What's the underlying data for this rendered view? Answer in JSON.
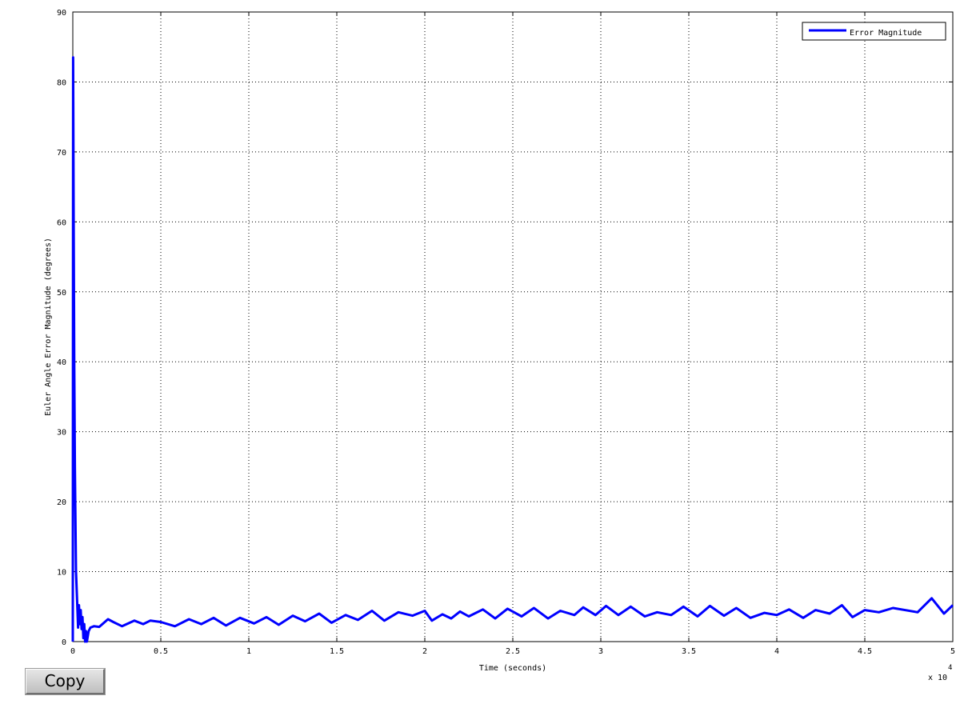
{
  "copy_button": {
    "label": "Copy"
  },
  "chart_data": {
    "type": "line",
    "title": "",
    "xlabel": "Time (seconds)",
    "ylabel": "Euler Angle Error Magnitude (degrees)",
    "x_exponent_label": {
      "base": "x 10",
      "power": "4"
    },
    "xlim": [
      0,
      5
    ],
    "ylim": [
      0,
      90
    ],
    "x_ticks": [
      0,
      0.5,
      1,
      1.5,
      2,
      2.5,
      3,
      3.5,
      4,
      4.5,
      5
    ],
    "x_tick_labels": [
      "0",
      "0.5",
      "1",
      "1.5",
      "2",
      "2.5",
      "3",
      "3.5",
      "4",
      "4.5",
      "5"
    ],
    "y_ticks": [
      0,
      10,
      20,
      30,
      40,
      50,
      60,
      70,
      80,
      90
    ],
    "y_tick_labels": [
      "0",
      "10",
      "20",
      "30",
      "40",
      "50",
      "60",
      "70",
      "80",
      "90"
    ],
    "grid": true,
    "legend_position": "top-right",
    "series": [
      {
        "name": "Error Magnitude",
        "color": "#0000ff",
        "x": [
          0,
          0.002,
          0.005,
          0.008,
          0.012,
          0.018,
          0.025,
          0.03,
          0.035,
          0.04,
          0.045,
          0.05,
          0.055,
          0.06,
          0.065,
          0.07,
          0.075,
          0.08,
          0.09,
          0.1,
          0.12,
          0.15,
          0.2,
          0.23,
          0.28,
          0.35,
          0.4,
          0.44,
          0.5,
          0.58,
          0.66,
          0.73,
          0.8,
          0.87,
          0.95,
          1.03,
          1.1,
          1.17,
          1.25,
          1.32,
          1.4,
          1.47,
          1.55,
          1.62,
          1.7,
          1.77,
          1.85,
          1.93,
          2.0,
          2.04,
          2.1,
          2.15,
          2.2,
          2.25,
          2.33,
          2.4,
          2.47,
          2.55,
          2.62,
          2.7,
          2.77,
          2.85,
          2.9,
          2.97,
          3.03,
          3.1,
          3.17,
          3.25,
          3.32,
          3.4,
          3.47,
          3.55,
          3.62,
          3.7,
          3.77,
          3.85,
          3.93,
          4.0,
          4.07,
          4.15,
          4.22,
          4.3,
          4.37,
          4.43,
          4.5,
          4.58,
          4.66,
          4.8,
          4.88,
          4.95,
          5.0
        ],
        "y": [
          0,
          83.5,
          60,
          40,
          25,
          10,
          5.5,
          2,
          5.2,
          2.5,
          4.5,
          1.8,
          3.5,
          0.5,
          2.5,
          0,
          1.5,
          0,
          1.5,
          2.0,
          2.2,
          2.1,
          3.2,
          2.8,
          2.2,
          3.0,
          2.5,
          3.0,
          2.8,
          2.2,
          3.2,
          2.5,
          3.4,
          2.3,
          3.4,
          2.6,
          3.5,
          2.4,
          3.7,
          2.9,
          4.0,
          2.7,
          3.8,
          3.1,
          4.4,
          3.0,
          4.2,
          3.7,
          4.4,
          3.0,
          3.9,
          3.3,
          4.3,
          3.6,
          4.6,
          3.3,
          4.7,
          3.6,
          4.8,
          3.3,
          4.4,
          3.8,
          4.9,
          3.8,
          5.1,
          3.8,
          5.0,
          3.6,
          4.2,
          3.8,
          5.0,
          3.6,
          5.1,
          3.7,
          4.8,
          3.4,
          4.1,
          3.8,
          4.6,
          3.4,
          4.5,
          4.0,
          5.2,
          3.5,
          4.5,
          4.2,
          4.8,
          4.2,
          6.2,
          4.0,
          5.2
        ]
      }
    ]
  }
}
